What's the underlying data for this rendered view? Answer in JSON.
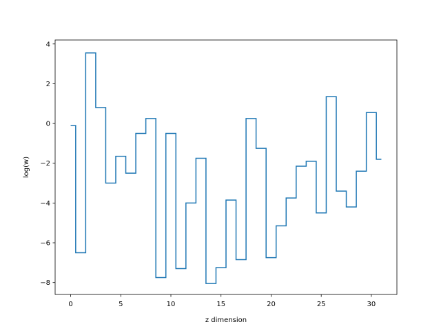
{
  "chart_data": {
    "type": "line",
    "drawstyle": "steps-mid",
    "title": "",
    "xlabel": "z dimension",
    "ylabel": "log(w)",
    "xlim": [
      -1.55,
      32.55
    ],
    "ylim": [
      -8.6,
      4.2
    ],
    "xticks": [
      0,
      5,
      10,
      15,
      20,
      25,
      30
    ],
    "yticks": [
      -8,
      -6,
      -4,
      -2,
      0,
      2,
      4
    ],
    "grid": false,
    "color": "#1f77b4",
    "series": [
      {
        "x": [
          0,
          1,
          2,
          3,
          4,
          5,
          6,
          7,
          8,
          9,
          10,
          11,
          12,
          13,
          14,
          15,
          16,
          17,
          18,
          19,
          20,
          21,
          22,
          23,
          24,
          25,
          26,
          27,
          28,
          29,
          30,
          31
        ],
        "y": [
          -0.1,
          -6.5,
          3.55,
          0.8,
          -3.0,
          -1.65,
          -2.5,
          -0.5,
          0.25,
          -7.75,
          -0.5,
          -7.3,
          -4.0,
          -1.75,
          -8.05,
          -7.25,
          -3.85,
          -6.85,
          0.25,
          -1.25,
          -6.75,
          -5.15,
          -3.75,
          -2.15,
          -1.9,
          -4.5,
          1.35,
          -3.4,
          -4.2,
          -2.4,
          0.55,
          -1.8
        ]
      }
    ]
  }
}
